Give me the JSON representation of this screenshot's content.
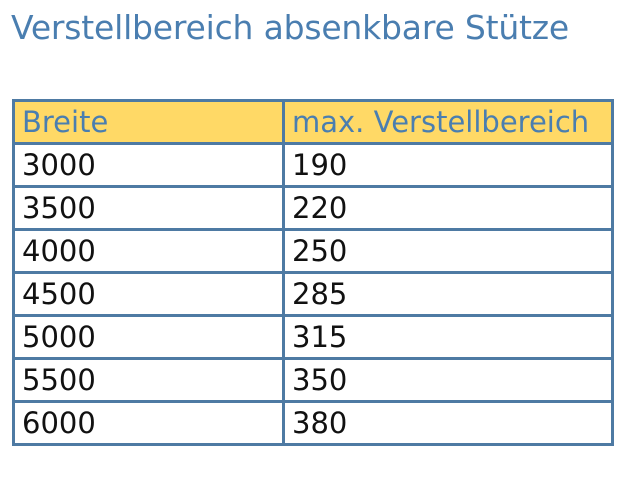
{
  "title": "Verstellbereich absenkbare Stütze",
  "table": {
    "headers": [
      "Breite",
      "max. Verstellbereich"
    ],
    "rows": [
      [
        "3000",
        "190"
      ],
      [
        "3500",
        "220"
      ],
      [
        "4000",
        "250"
      ],
      [
        "4500",
        "285"
      ],
      [
        "5000",
        "315"
      ],
      [
        "5500",
        "350"
      ],
      [
        "6000",
        "380"
      ]
    ]
  },
  "colors": {
    "title": "#4a7eb0",
    "header_bg": "#ffd966",
    "header_text": "#4a7eb0",
    "border": "#4e7aa3"
  }
}
